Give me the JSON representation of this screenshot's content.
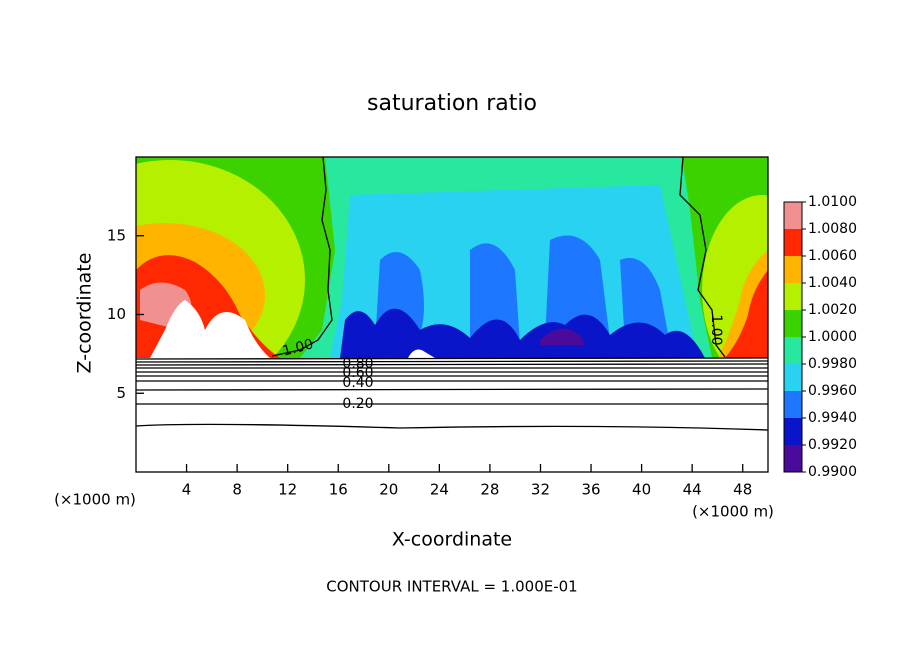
{
  "chart_data": {
    "type": "contour",
    "title": "saturation ratio",
    "x_label": "X-coordinate",
    "y_label": "Z-coordinate",
    "x_unit": "(×1000 m)",
    "xlim": [
      0,
      50
    ],
    "ylim": [
      0,
      20
    ],
    "xticks": [
      4,
      8,
      12,
      16,
      20,
      24,
      28,
      32,
      36,
      40,
      44,
      48
    ],
    "yticks": [
      5,
      10,
      15
    ],
    "colorbar": {
      "lim": [
        0.99,
        1.01
      ],
      "ticks": [
        {
          "value": 0.99,
          "label": "0.9900"
        },
        {
          "value": 0.992,
          "label": "0.9920"
        },
        {
          "value": 0.994,
          "label": "0.9940"
        },
        {
          "value": 0.996,
          "label": "0.9960"
        },
        {
          "value": 0.998,
          "label": "0.9980"
        },
        {
          "value": 1.0,
          "label": "1.0000"
        },
        {
          "value": 1.002,
          "label": "1.0020"
        },
        {
          "value": 1.004,
          "label": "1.0040"
        },
        {
          "value": 1.006,
          "label": "1.0060"
        },
        {
          "value": 1.008,
          "label": "1.0080"
        },
        {
          "value": 1.01,
          "label": "1.0100"
        }
      ],
      "colors": [
        "#4a0a9a",
        "#0a14c8",
        "#1e78ff",
        "#28d2f0",
        "#28e8a0",
        "#3cd200",
        "#b4f000",
        "#ffb400",
        "#ff2800",
        "#f09090"
      ]
    },
    "contour_labels": [
      "1.00",
      "0.80",
      "0.60",
      "0.40",
      "0.20"
    ],
    "footer": "CONTOUR INTERVAL = 1.000E-01"
  }
}
